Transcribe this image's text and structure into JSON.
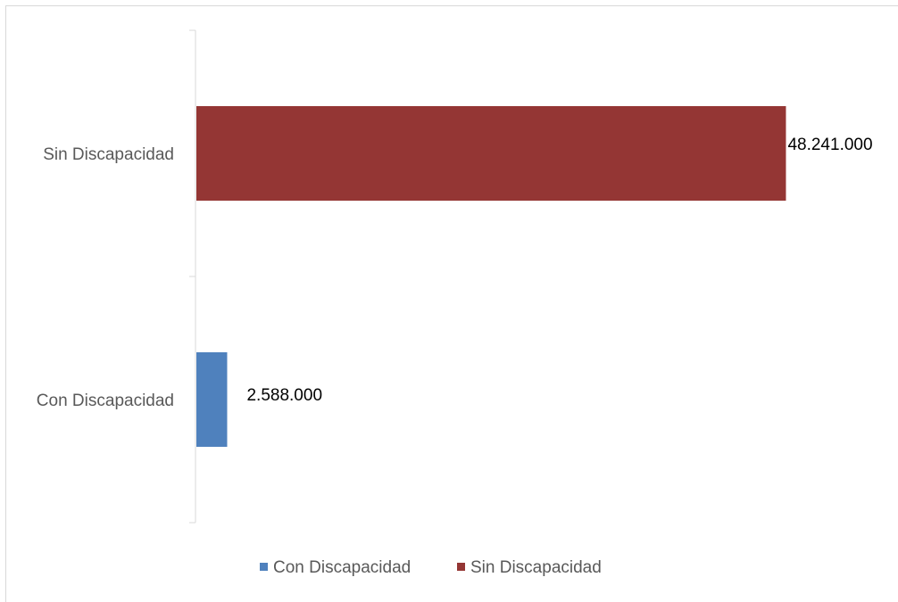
{
  "chart_data": {
    "type": "bar",
    "orientation": "horizontal",
    "categories": [
      "Con Discapacidad",
      "Sin Discapacidad"
    ],
    "series": [
      {
        "name": "Con Discapacidad",
        "values": [
          2588000,
          null
        ],
        "color": "#4f81bd"
      },
      {
        "name": "Sin Discapacidad",
        "values": [
          null,
          48241000
        ],
        "color": "#943634"
      }
    ],
    "data_labels": [
      "2.588.000",
      "48.241.000"
    ],
    "title": "",
    "xlabel": "",
    "ylabel": "",
    "xlim": [
      0,
      52000000
    ],
    "grid": false,
    "legend": "bottom"
  }
}
